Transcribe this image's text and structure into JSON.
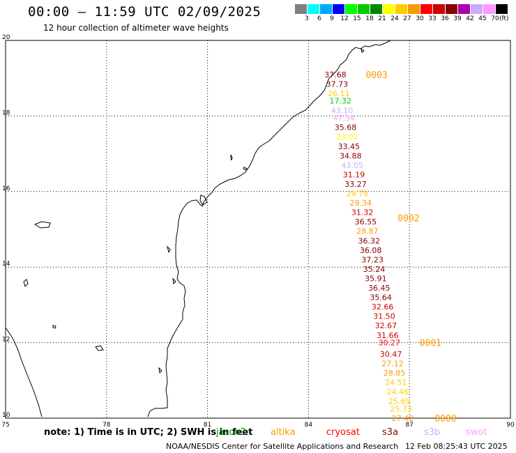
{
  "header": {
    "title": "00:00 — 11:59 UTC 02/09/2025",
    "subtitle": "12 hour collection of altimeter wave heights"
  },
  "scale": {
    "unit": "(ft)",
    "colors": [
      "#808080",
      "#00ffff",
      "#00aaff",
      "#0000ff",
      "#00ff00",
      "#00cc00",
      "#008800",
      "#ffff00",
      "#ffcc00",
      "#ff9900",
      "#ff0000",
      "#cc0000",
      "#880000",
      "#aa00aa",
      "#ccaaff",
      "#ff99ff",
      "#000000"
    ],
    "labels": [
      "3",
      "6",
      "9",
      "12",
      "15",
      "18",
      "21",
      "24",
      "27",
      "30",
      "33",
      "36",
      "39",
      "42",
      "45",
      "70"
    ]
  },
  "axes": {
    "x_ticks": [
      "75",
      "78",
      "81",
      "84",
      "87",
      "90"
    ],
    "y_ticks": [
      "20",
      "18",
      "16",
      "14",
      "12",
      "10"
    ]
  },
  "chart_data": {
    "type": "scatter",
    "xlabel": "",
    "ylabel": "",
    "xlim": [
      75,
      90
    ],
    "ylim": [
      10,
      20
    ],
    "grid": true,
    "track_labels": [
      {
        "text": "0003",
        "lon": 85.7,
        "lat": 19.1,
        "color": "#ff9900"
      },
      {
        "text": "0002",
        "lon": 86.65,
        "lat": 15.3,
        "color": "#ff9900"
      },
      {
        "text": "0001",
        "lon": 87.3,
        "lat": 12.0,
        "color": "#ff9900"
      },
      {
        "text": "0000",
        "lon": 87.75,
        "lat": 10.0,
        "color": "#ff9900"
      }
    ],
    "points": [
      {
        "text": "37.68",
        "lon": 84.8,
        "lat": 19.1,
        "color": "#880000"
      },
      {
        "text": "37.73",
        "lon": 84.85,
        "lat": 18.85,
        "color": "#880000"
      },
      {
        "text": "26.11",
        "lon": 84.9,
        "lat": 18.6,
        "color": "#ffcc00"
      },
      {
        "text": "17.32",
        "lon": 84.95,
        "lat": 18.4,
        "color": "#00cc00"
      },
      {
        "text": "43.10",
        "lon": 85.0,
        "lat": 18.15,
        "color": "#ccaaff"
      },
      {
        "text": "47.34",
        "lon": 85.05,
        "lat": 17.95,
        "color": "#ff99ff"
      },
      {
        "text": "35.68",
        "lon": 85.1,
        "lat": 17.7,
        "color": "#880000"
      },
      {
        "text": "23.02",
        "lon": 85.15,
        "lat": 17.45,
        "color": "#ffff00"
      },
      {
        "text": "33.45",
        "lon": 85.2,
        "lat": 17.2,
        "color": "#880000"
      },
      {
        "text": "34.88",
        "lon": 85.25,
        "lat": 16.95,
        "color": "#880000"
      },
      {
        "text": "43.05",
        "lon": 85.3,
        "lat": 16.7,
        "color": "#ccaaff"
      },
      {
        "text": "31.19",
        "lon": 85.35,
        "lat": 16.45,
        "color": "#cc0000"
      },
      {
        "text": "33.27",
        "lon": 85.4,
        "lat": 16.2,
        "color": "#880000"
      },
      {
        "text": "29.78",
        "lon": 85.45,
        "lat": 15.95,
        "color": "#ffcc00"
      },
      {
        "text": "29.34",
        "lon": 85.55,
        "lat": 15.7,
        "color": "#ff9900"
      },
      {
        "text": "31.32",
        "lon": 85.6,
        "lat": 15.45,
        "color": "#cc0000"
      },
      {
        "text": "36.55",
        "lon": 85.7,
        "lat": 15.2,
        "color": "#880000"
      },
      {
        "text": "28.87",
        "lon": 85.75,
        "lat": 14.95,
        "color": "#ff9900"
      },
      {
        "text": "36.32",
        "lon": 85.8,
        "lat": 14.7,
        "color": "#880000"
      },
      {
        "text": "36.08",
        "lon": 85.85,
        "lat": 14.45,
        "color": "#880000"
      },
      {
        "text": "37.23",
        "lon": 85.9,
        "lat": 14.2,
        "color": "#880000"
      },
      {
        "text": "35.24",
        "lon": 85.95,
        "lat": 13.95,
        "color": "#880000"
      },
      {
        "text": "35.91",
        "lon": 86.0,
        "lat": 13.7,
        "color": "#880000"
      },
      {
        "text": "36.45",
        "lon": 86.1,
        "lat": 13.45,
        "color": "#880000"
      },
      {
        "text": "35.64",
        "lon": 86.15,
        "lat": 13.2,
        "color": "#880000"
      },
      {
        "text": "32.66",
        "lon": 86.2,
        "lat": 12.95,
        "color": "#cc0000"
      },
      {
        "text": "31.50",
        "lon": 86.25,
        "lat": 12.7,
        "color": "#cc0000"
      },
      {
        "text": "32.67",
        "lon": 86.3,
        "lat": 12.45,
        "color": "#cc0000"
      },
      {
        "text": "31.66",
        "lon": 86.35,
        "lat": 12.2,
        "color": "#cc0000"
      },
      {
        "text": "30.27",
        "lon": 86.4,
        "lat": 12.0,
        "color": "#ff0000"
      },
      {
        "text": "30.47",
        "lon": 86.45,
        "lat": 11.7,
        "color": "#cc0000"
      },
      {
        "text": "27.12",
        "lon": 86.5,
        "lat": 11.45,
        "color": "#ff9900"
      },
      {
        "text": "28.85",
        "lon": 86.55,
        "lat": 11.2,
        "color": "#ff9900"
      },
      {
        "text": "24.51",
        "lon": 86.6,
        "lat": 10.95,
        "color": "#ffcc00"
      },
      {
        "text": "24.46",
        "lon": 86.65,
        "lat": 10.7,
        "color": "#ffcc00"
      },
      {
        "text": "25.69",
        "lon": 86.7,
        "lat": 10.45,
        "color": "#ffcc00"
      },
      {
        "text": "25.73",
        "lon": 86.75,
        "lat": 10.25,
        "color": "#ffcc00"
      },
      {
        "text": "27.42",
        "lon": 86.8,
        "lat": 10.0,
        "color": "#ff9900"
      }
    ]
  },
  "footer": {
    "note": "note: 1) Time is in UTC; 2) SWH is in feet",
    "satellites": [
      {
        "name": "jason3",
        "color": "#008800"
      },
      {
        "name": "altika",
        "color": "#ff9900"
      },
      {
        "name": "cryosat",
        "color": "#ff0000"
      },
      {
        "name": "s3a",
        "color": "#880000"
      },
      {
        "name": "s3b",
        "color": "#ccaaff"
      },
      {
        "name": "swot",
        "color": "#ff99ff"
      }
    ],
    "center": "NOAA/NESDIS Center for Satellite Applications and Research",
    "timestamp": "12 Feb 08:25:43 UTC 2025"
  }
}
